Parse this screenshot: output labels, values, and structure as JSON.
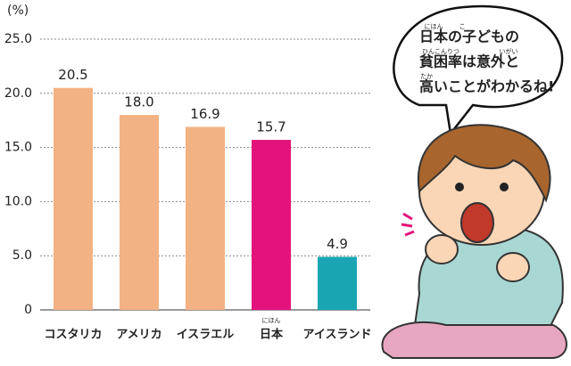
{
  "chart_data": {
    "type": "bar",
    "y_label": "(%)",
    "categories": [
      "コスタリカ",
      "アメリカ",
      "イスラエル",
      "日本",
      "アイスランド"
    ],
    "category_ruby": [
      null,
      null,
      null,
      "にほん",
      null
    ],
    "values": [
      20.5,
      18.0,
      16.9,
      15.7,
      4.9
    ],
    "value_labels": [
      "20.5",
      "18.0",
      "16.9",
      "15.7",
      "4.9"
    ],
    "colors": [
      "#f3b283",
      "#f3b283",
      "#f3b283",
      "#e3137b",
      "#19a6b2"
    ],
    "ylim": [
      0,
      25
    ],
    "yticks": [
      0,
      {
        "value": 5,
        "label": "5.0"
      },
      {
        "value": 10,
        "label": "10.0"
      },
      {
        "value": 15,
        "label": "15.0"
      },
      {
        "value": 20,
        "label": "20.0"
      },
      {
        "value": 25,
        "label": "25.0"
      }
    ],
    "grid": true,
    "speech_bubble": {
      "lines": [
        "日本の子どもの",
        "貧困率は意外と",
        "高いことがわかるね!"
      ],
      "ruby": [
        "にほん",
        "こ",
        "ひんこんりつ",
        "いがい",
        "たか"
      ]
    }
  }
}
